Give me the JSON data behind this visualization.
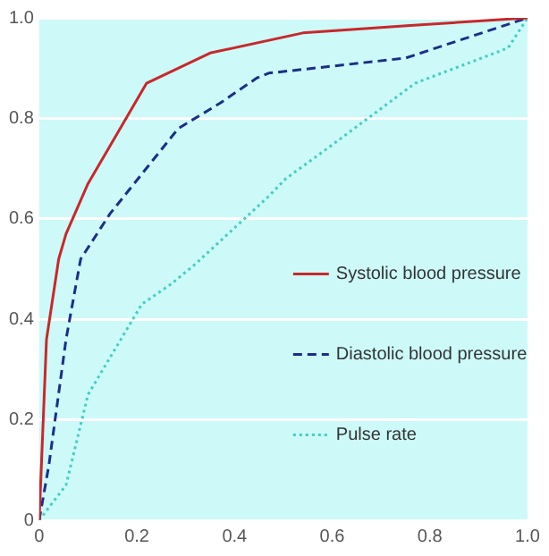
{
  "chart_data": {
    "type": "line",
    "xlim": [
      0,
      1
    ],
    "ylim": [
      0,
      1
    ],
    "xticks": [
      0,
      0.2,
      0.4,
      0.6,
      0.8,
      {
        "value": 1,
        "label": "1.0"
      }
    ],
    "yticks": [
      0,
      0.2,
      0.4,
      0.6,
      0.8,
      {
        "value": 1,
        "label": "1.0"
      }
    ],
    "grid": "y",
    "legend": "right",
    "marker": "none",
    "series": [
      {
        "name": "Systolic blood pressure",
        "color": "#c8282a",
        "line_style": "solid",
        "x": [
          0,
          0.015,
          0.04,
          0.055,
          0.1,
          0.22,
          0.35,
          0.54,
          0.76,
          1
        ],
        "values": [
          0,
          0.36,
          0.52,
          0.57,
          0.67,
          0.87,
          0.93,
          0.97,
          0.985,
          1
        ]
      },
      {
        "name": "Diastolic blood pressure",
        "color": "#1a2f8a",
        "line_style": "dashed",
        "x": [
          0,
          0.02,
          0.055,
          0.085,
          0.145,
          0.285,
          0.37,
          0.445,
          0.47,
          0.75,
          1
        ],
        "values": [
          0,
          0.11,
          0.36,
          0.52,
          0.61,
          0.78,
          0.83,
          0.88,
          0.89,
          0.92,
          1
        ]
      },
      {
        "name": "Pulse rate",
        "color": "#40d0c0",
        "line_style": "dotted",
        "x": [
          0,
          0.055,
          0.1,
          0.21,
          0.27,
          0.32,
          0.47,
          0.505,
          0.59,
          0.77,
          0.96,
          1
        ],
        "values": [
          0,
          0.07,
          0.25,
          0.43,
          0.47,
          0.51,
          0.645,
          0.68,
          0.74,
          0.87,
          0.94,
          1
        ]
      }
    ]
  }
}
